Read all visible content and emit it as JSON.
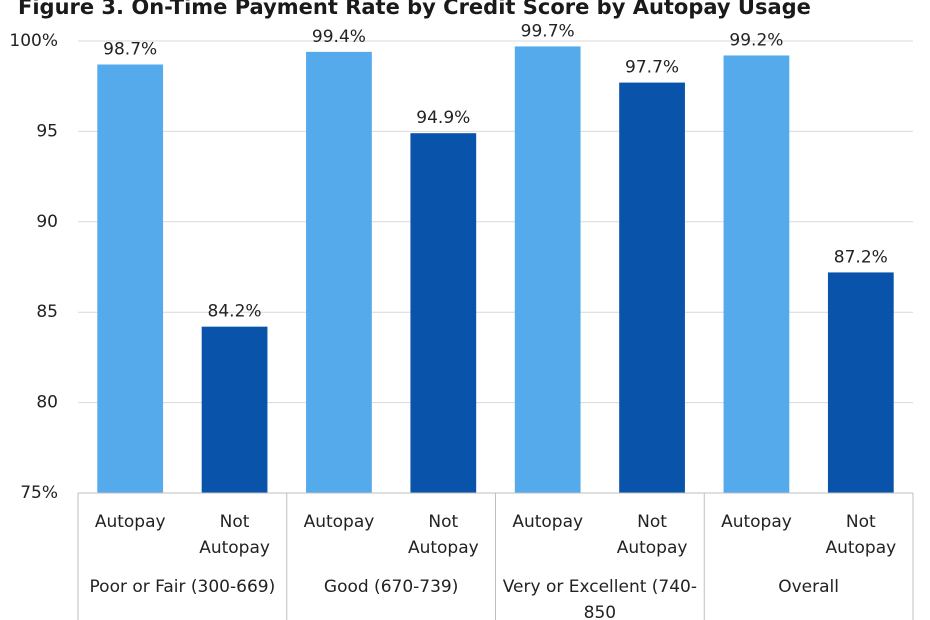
{
  "chart_data": {
    "type": "bar",
    "title": "Figure 3. On-Time Payment Rate by Credit Score by Autopay Usage",
    "ylim": [
      75,
      100
    ],
    "yticks": [
      "75%",
      "80",
      "85",
      "90",
      "95",
      "100%"
    ],
    "ytick_values": [
      75,
      80,
      85,
      90,
      95,
      100
    ],
    "grid": true,
    "groups": [
      {
        "label_lines": [
          "Poor or Fair (300-669)"
        ],
        "bars": [
          {
            "label_lines": [
              "Autopay"
            ],
            "value": 98.7,
            "display": "98.7%",
            "kind": "autopay"
          },
          {
            "label_lines": [
              "Not",
              "Autopay"
            ],
            "value": 84.2,
            "display": "84.2%",
            "kind": "not"
          }
        ]
      },
      {
        "label_lines": [
          "Good (670-739)"
        ],
        "bars": [
          {
            "label_lines": [
              "Autopay"
            ],
            "value": 99.4,
            "display": "99.4%",
            "kind": "autopay"
          },
          {
            "label_lines": [
              "Not",
              "Autopay"
            ],
            "value": 94.9,
            "display": "94.9%",
            "kind": "not"
          }
        ]
      },
      {
        "label_lines": [
          "Very or Excellent (740-",
          "850"
        ],
        "bars": [
          {
            "label_lines": [
              "Autopay"
            ],
            "value": 99.7,
            "display": "99.7%",
            "kind": "autopay"
          },
          {
            "label_lines": [
              "Not",
              "Autopay"
            ],
            "value": 97.7,
            "display": "97.7%",
            "kind": "not"
          }
        ]
      },
      {
        "label_lines": [
          "Overall"
        ],
        "bars": [
          {
            "label_lines": [
              "Autopay"
            ],
            "value": 99.2,
            "display": "99.2%",
            "kind": "autopay"
          },
          {
            "label_lines": [
              "Not",
              "Autopay"
            ],
            "value": 87.2,
            "display": "87.2%",
            "kind": "not"
          }
        ]
      }
    ],
    "colors": {
      "autopay": "#55aaeb",
      "not": "#0954aa"
    }
  }
}
